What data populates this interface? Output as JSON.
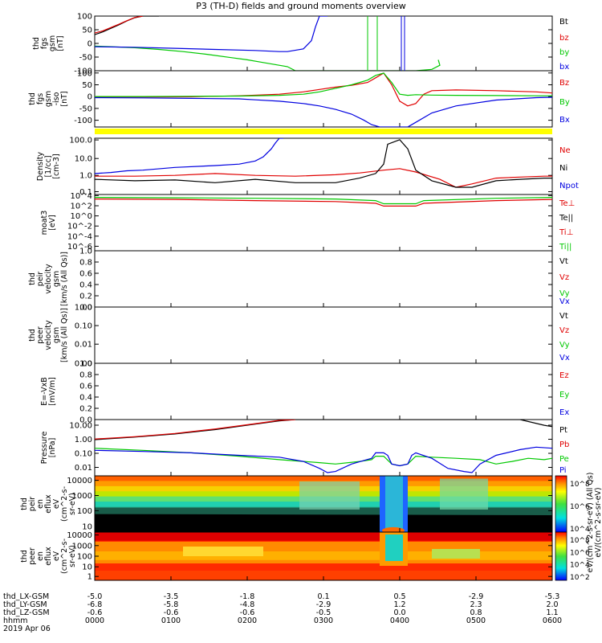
{
  "title": "P3 (TH-D) fields and ground moments overview",
  "chart_data": [
    {
      "type": "line",
      "id": "fgs_gsm",
      "ylabel": [
        "thd",
        "fgs",
        "gsm",
        "[nT]"
      ],
      "ylim": [
        -100,
        100
      ],
      "yticks": [
        "100",
        "50",
        "0",
        "-50",
        "-100"
      ],
      "legend": [
        {
          "name": "Bt",
          "color": "#000000"
        },
        {
          "name": "bz",
          "color": "#e00000"
        },
        {
          "name": "by",
          "color": "#00c800"
        },
        {
          "name": "bx",
          "color": "#0000e0"
        }
      ],
      "series": [
        {
          "name": "Bt",
          "x": [
            0,
            10,
            20,
            30,
            40,
            50,
            60,
            80
          ],
          "y": [
            32,
            42,
            55,
            68,
            82,
            94,
            100,
            100
          ]
        },
        {
          "name": "bz",
          "x": [
            0,
            10,
            20,
            30,
            40,
            50,
            60
          ],
          "y": [
            38,
            46,
            58,
            70,
            83,
            95,
            100
          ]
        },
        {
          "name": "by",
          "x": [
            0,
            20,
            50,
            80,
            110,
            140,
            170,
            190,
            210,
            240,
            250,
            360,
            400,
            420,
            430,
            428
          ],
          "y": [
            -10,
            -12,
            -16,
            -22,
            -30,
            -40,
            -52,
            -60,
            -70,
            -85,
            -100,
            -100,
            -100,
            -95,
            -80,
            -60
          ]
        },
        {
          "name": "bx",
          "x": [
            0,
            50,
            100,
            150,
            200,
            230,
            240,
            260,
            270,
            275,
            280,
            290
          ],
          "y": [
            -12,
            -14,
            -18,
            -22,
            -26,
            -30,
            -30,
            -20,
            10,
            60,
            100,
            100
          ]
        }
      ]
    },
    {
      "type": "line",
      "id": "fgs_gsm_iso",
      "ylabel": [
        "thd",
        "fgs",
        "gsm",
        "-iso",
        "[nT]"
      ],
      "ylim": [
        -130,
        110
      ],
      "yticks": [
        "100",
        "50",
        "0",
        "-50",
        "-100"
      ],
      "legend": [
        {
          "name": "Bz",
          "color": "#e00000"
        },
        {
          "name": "By",
          "color": "#00c800"
        },
        {
          "name": "Bx",
          "color": "#0000e0"
        }
      ],
      "series": [
        {
          "name": "Bz",
          "x": [
            0,
            60,
            120,
            180,
            230,
            260,
            280,
            300,
            320,
            340,
            350,
            360,
            370,
            380,
            390,
            400,
            410,
            420,
            450,
            500,
            550,
            570
          ],
          "y": [
            -2,
            -2,
            -1,
            3,
            10,
            20,
            30,
            40,
            48,
            60,
            80,
            100,
            50,
            -20,
            -40,
            -30,
            10,
            25,
            28,
            25,
            20,
            15
          ]
        },
        {
          "name": "By",
          "x": [
            0,
            60,
            120,
            180,
            230,
            260,
            280,
            300,
            320,
            340,
            350,
            360,
            370,
            380,
            390,
            400,
            420,
            450,
            500,
            550,
            570
          ],
          "y": [
            0,
            0,
            1,
            2,
            5,
            10,
            20,
            35,
            50,
            70,
            90,
            100,
            60,
            10,
            5,
            8,
            6,
            5,
            4,
            3,
            3
          ]
        },
        {
          "name": "Bx",
          "x": [
            0,
            60,
            120,
            180,
            200,
            230,
            260,
            280,
            300,
            320,
            335,
            345,
            355,
            360,
            365,
            380,
            390,
            400,
            420,
            450,
            500,
            550,
            570
          ],
          "y": [
            -5,
            -6,
            -8,
            -10,
            -14,
            -20,
            -30,
            -40,
            -55,
            -75,
            -100,
            -120,
            -130,
            -130,
            -130,
            -130,
            -130,
            -110,
            -70,
            -40,
            -15,
            -5,
            -3
          ]
        }
      ]
    },
    {
      "type": "line",
      "id": "density",
      "yscale": "log",
      "ylabel": [
        "Density",
        "[1/cc]",
        "[cm-3]"
      ],
      "ylim": [
        0.05,
        250
      ],
      "yticks": [
        "100.0",
        "10.0",
        "1.0",
        "0.1"
      ],
      "legend": [
        {
          "name": "Ne",
          "color": "#e00000"
        },
        {
          "name": "Ni",
          "color": "#000000"
        },
        {
          "name": "Npot",
          "color": "#0000e0"
        }
      ],
      "series": [
        {
          "name": "Ne",
          "x": [
            0,
            50,
            100,
            150,
            200,
            250,
            300,
            330,
            360,
            380,
            400,
            430,
            450,
            470,
            500,
            530,
            560,
            570
          ],
          "y": [
            0.8,
            0.8,
            0.9,
            1.2,
            0.9,
            0.8,
            1.0,
            1.3,
            2.0,
            2.5,
            1.5,
            0.5,
            0.15,
            0.25,
            0.6,
            0.7,
            0.8,
            0.8
          ]
        },
        {
          "name": "Ni",
          "x": [
            0,
            50,
            100,
            150,
            200,
            250,
            300,
            330,
            350,
            360,
            365,
            380,
            390,
            400,
            420,
            450,
            470,
            500,
            530,
            560,
            570
          ],
          "y": [
            0.5,
            0.4,
            0.45,
            0.3,
            0.5,
            0.3,
            0.3,
            0.6,
            1.2,
            5,
            100,
            200,
            50,
            2,
            0.4,
            0.15,
            0.15,
            0.4,
            0.5,
            0.6,
            0.6
          ]
        },
        {
          "name": "Npot",
          "x": [
            0,
            20,
            40,
            60,
            100,
            150,
            180,
            200,
            210,
            220,
            225,
            230,
            235
          ],
          "y": [
            1.2,
            1.4,
            1.8,
            2.0,
            3.0,
            4.0,
            5.0,
            8.0,
            15,
            50,
            120,
            250,
            250
          ]
        }
      ]
    },
    {
      "type": "line",
      "id": "moat",
      "yscale": "log",
      "ylabel": [
        "moat3",
        "[eV]"
      ],
      "ylim": [
        1e-06,
        20000
      ],
      "yticks": [
        "10^4",
        "10^2",
        "10^0",
        "10^-2",
        "10^-4",
        "10^-6"
      ],
      "legend": [
        {
          "name": "Te⊥",
          "color": "#e00000"
        },
        {
          "name": "Te||",
          "color": "#000000"
        },
        {
          "name": "Ti⊥",
          "color": "#e00000"
        },
        {
          "name": "Ti||",
          "color": "#00c800"
        }
      ],
      "series": [
        {
          "name": "Te⊥",
          "x": [
            0,
            100,
            200,
            300,
            350,
            360,
            400,
            410,
            500,
            570
          ],
          "y": [
            3000,
            2500,
            1500,
            1000,
            500,
            150,
            150,
            500,
            1500,
            2500
          ]
        },
        {
          "name": "Ti||",
          "x": [
            0,
            100,
            200,
            300,
            350,
            360,
            400,
            410,
            500,
            570
          ],
          "y": [
            6000,
            5000,
            4000,
            3000,
            1500,
            400,
            400,
            1500,
            4000,
            6000
          ]
        }
      ]
    },
    {
      "type": "line",
      "id": "peir_velocity",
      "ylabel": [
        "thd",
        "peir",
        "velocity",
        "gsm",
        "[km/s (All Qs)]"
      ],
      "ylim": [
        0,
        1
      ],
      "yticks": [
        "1.0",
        "0.8",
        "0.6",
        "0.4",
        "0.2",
        "0.0"
      ],
      "legend": [
        {
          "name": "Vt",
          "color": "#000000"
        },
        {
          "name": "Vz",
          "color": "#e00000"
        },
        {
          "name": "Vy",
          "color": "#00c800"
        },
        {
          "name": "Vx",
          "color": "#0000e0"
        }
      ],
      "series": []
    },
    {
      "type": "line",
      "id": "peer_velocity",
      "ylabel": [
        "thd",
        "peer",
        "velocity",
        "gsm",
        "[km/s (All Qs)]"
      ],
      "ylim": [
        0,
        1
      ],
      "yticks": [
        "1.00",
        "0.10",
        "0.01",
        "0.00"
      ],
      "legend": [
        {
          "name": "Vt",
          "color": "#000000"
        },
        {
          "name": "Vz",
          "color": "#e00000"
        },
        {
          "name": "Vy",
          "color": "#00c800"
        },
        {
          "name": "Vx",
          "color": "#0000e0"
        }
      ],
      "series": []
    },
    {
      "type": "line",
      "id": "efield",
      "ylabel": [
        "E=-VxB",
        "[mV/m]"
      ],
      "ylim": [
        0,
        1
      ],
      "yticks": [
        "1.0",
        "0.8",
        "0.6",
        "0.4",
        "0.2",
        "0.0"
      ],
      "legend": [
        {
          "name": "Ez",
          "color": "#e00000"
        },
        {
          "name": "Ey",
          "color": "#00c800"
        },
        {
          "name": "Ex",
          "color": "#0000e0"
        }
      ],
      "series": []
    },
    {
      "type": "line",
      "id": "pressure",
      "yscale": "log",
      "ylabel": [
        "Pressure",
        "[nPa]"
      ],
      "ylim": [
        0.003,
        25
      ],
      "yticks": [
        "10.00",
        "1.00",
        "0.10",
        "0.01"
      ],
      "legend": [
        {
          "name": "Pt",
          "color": "#000000"
        },
        {
          "name": "Pb",
          "color": "#e00000"
        },
        {
          "name": "Pe",
          "color": "#00c800"
        },
        {
          "name": "Pi",
          "color": "#0000e0"
        }
      ],
      "series": [
        {
          "name": "Pt",
          "x": [
            0,
            50,
            100,
            150,
            200,
            230,
            250,
            530,
            560,
            570
          ],
          "y": [
            1.0,
            1.5,
            2.5,
            5.0,
            12,
            20,
            25,
            25,
            10,
            8
          ]
        },
        {
          "name": "Pb",
          "x": [
            0,
            50,
            100,
            150,
            200,
            230,
            250
          ],
          "y": [
            1.1,
            1.6,
            2.7,
            5.5,
            13,
            22,
            25
          ]
        },
        {
          "name": "Pe",
          "x": [
            0,
            60,
            120,
            180,
            230,
            260,
            280,
            300,
            330,
            345,
            350,
            360,
            370,
            380,
            390,
            400,
            420,
            450,
            480,
            500,
            520,
            540,
            560,
            570
          ],
          "y": [
            0.25,
            0.18,
            0.12,
            0.07,
            0.04,
            0.03,
            0.025,
            0.02,
            0.03,
            0.04,
            0.07,
            0.07,
            0.02,
            0.015,
            0.02,
            0.07,
            0.06,
            0.05,
            0.04,
            0.02,
            0.03,
            0.05,
            0.04,
            0.05
          ]
        },
        {
          "name": "Pi",
          "x": [
            0,
            60,
            120,
            180,
            230,
            260,
            280,
            290,
            300,
            320,
            345,
            350,
            360,
            365,
            370,
            380,
            390,
            395,
            400,
            420,
            440,
            460,
            470,
            480,
            500,
            530,
            550,
            570
          ],
          "y": [
            0.18,
            0.15,
            0.12,
            0.08,
            0.06,
            0.03,
            0.01,
            0.005,
            0.006,
            0.02,
            0.05,
            0.12,
            0.12,
            0.08,
            0.02,
            0.015,
            0.02,
            0.08,
            0.12,
            0.05,
            0.01,
            0.006,
            0.005,
            0.02,
            0.08,
            0.2,
            0.3,
            0.25
          ]
        }
      ]
    },
    {
      "type": "heatmap",
      "id": "peir_en_eflux",
      "ylabel": [
        "thd",
        "peir",
        "en",
        "eflux",
        "eV",
        "(cm^2-s-",
        "sr-eV)"
      ],
      "yscale": "log",
      "ylim": [
        5,
        25000
      ],
      "yticks": [
        "10000",
        "1000",
        "100",
        "10"
      ]
    },
    {
      "type": "heatmap",
      "id": "peer_en_eflux",
      "ylabel": [
        "thd",
        "peer",
        "en",
        "eflux",
        "eV",
        "(cm^2-s-",
        "sr-eV)"
      ],
      "yscale": "log",
      "ylim": [
        0.5,
        25000
      ],
      "yticks": [
        "10000",
        "1000",
        "100",
        "10",
        "1"
      ]
    }
  ],
  "colorbars": [
    {
      "label": "eV/(cm^2-s-sr-eV) (All Qs)",
      "ticks": [
        "10^8",
        "10^6",
        "10^4"
      ]
    },
    {
      "label": "eV/(cm^2-s-sr-eV)",
      "ticks": [
        "10^8",
        "10^6",
        "10^4",
        "10^2"
      ]
    }
  ],
  "footer": {
    "rows": [
      {
        "label": "thd_LX-GSM",
        "values": [
          "-5.0",
          "-3.5",
          "-1.8",
          "0.1",
          "0.5",
          "-2.9",
          "-5.3"
        ]
      },
      {
        "label": "thd_LY-GSM",
        "values": [
          "-6.8",
          "-5.8",
          "-4.8",
          "-2.9",
          "1.2",
          "2.3",
          "2.0"
        ]
      },
      {
        "label": "thd_LZ-GSM",
        "values": [
          "-0.6",
          "-0.6",
          "-0.6",
          "-0.5",
          "0.0",
          "0.8",
          "1.1"
        ]
      },
      {
        "label": "hhmm",
        "values": [
          "0000",
          "0100",
          "0200",
          "0300",
          "0400",
          "0500",
          "0600"
        ]
      }
    ],
    "date": "2019 Apr 06"
  }
}
